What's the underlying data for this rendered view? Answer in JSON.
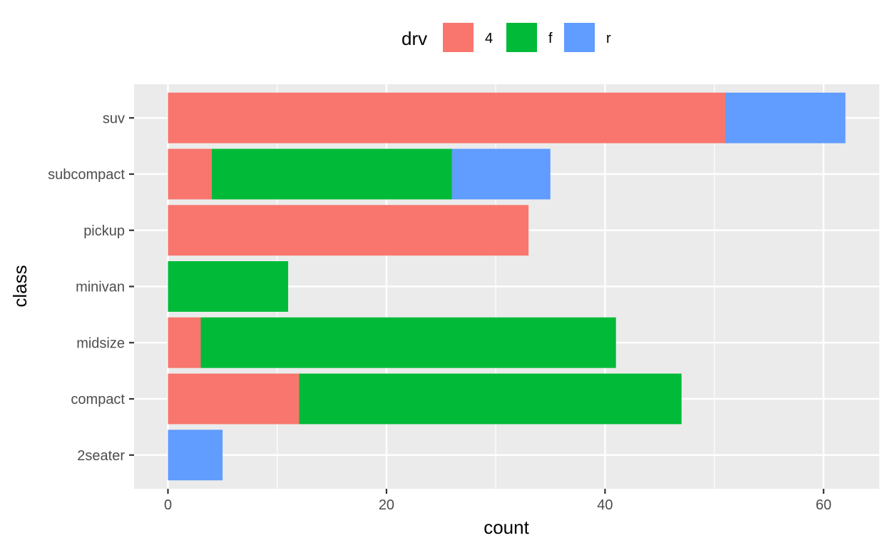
{
  "chart_data": {
    "type": "bar",
    "orientation": "horizontal",
    "stacked": true,
    "xlabel": "count",
    "ylabel": "class",
    "xlim": [
      -3.1,
      65.1
    ],
    "xticks": [
      0,
      20,
      40,
      60
    ],
    "grid": true,
    "legend": {
      "title": "drv",
      "position": "top"
    },
    "categories": [
      "2seater",
      "compact",
      "midsize",
      "minivan",
      "pickup",
      "subcompact",
      "suv"
    ],
    "series": [
      {
        "name": "4",
        "color": "#F8766D",
        "values": [
          0,
          12,
          3,
          0,
          33,
          4,
          51
        ]
      },
      {
        "name": "f",
        "color": "#00BA38",
        "values": [
          0,
          35,
          38,
          11,
          0,
          22,
          0
        ]
      },
      {
        "name": "r",
        "color": "#619CFF",
        "values": [
          5,
          0,
          0,
          0,
          0,
          9,
          11
        ]
      }
    ]
  }
}
